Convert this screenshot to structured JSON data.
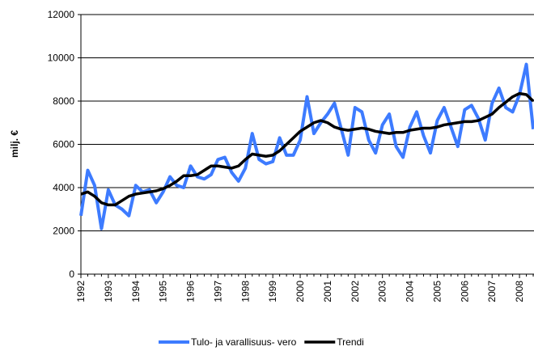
{
  "chart_data": {
    "type": "line",
    "y_label": "milj. €",
    "categories": [
      "1992",
      null,
      null,
      null,
      "1993",
      null,
      null,
      null,
      "1994",
      null,
      null,
      null,
      "1995",
      null,
      null,
      null,
      "1996",
      null,
      null,
      null,
      "1997",
      null,
      null,
      null,
      "1998",
      null,
      null,
      null,
      "1999",
      null,
      null,
      null,
      "2000",
      null,
      null,
      null,
      "2001",
      null,
      null,
      null,
      "2002",
      null,
      null,
      null,
      "2003",
      null,
      null,
      null,
      "2004",
      null,
      null,
      null,
      "2005",
      null,
      null,
      null,
      "2006",
      null,
      null,
      null,
      "2007",
      null,
      null,
      null,
      "2008",
      null,
      null
    ],
    "series": [
      {
        "name": "Tulo- ja varallisuus- vero",
        "color": "#3d7bff",
        "width": 4,
        "values": [
          2700,
          4800,
          4100,
          2100,
          3900,
          3200,
          3000,
          2700,
          4100,
          3800,
          3900,
          3300,
          3800,
          4500,
          4100,
          4000,
          5000,
          4500,
          4400,
          4600,
          5300,
          5400,
          4700,
          4300,
          4900,
          6500,
          5300,
          5100,
          5200,
          6300,
          5500,
          5500,
          6200,
          8200,
          6500,
          7000,
          7400,
          7900,
          6700,
          5500,
          7700,
          7500,
          6200,
          5600,
          6900,
          7400,
          5900,
          5400,
          6800,
          7500,
          6400,
          5600,
          7100,
          7700,
          6800,
          5900,
          7600,
          7800,
          7200,
          6200,
          7900,
          8600,
          7700,
          7500,
          8300,
          9700,
          6700
        ]
      },
      {
        "name": "Trendi",
        "color": "#000000",
        "width": 3.5,
        "values": [
          3700,
          3800,
          3600,
          3300,
          3200,
          3200,
          3400,
          3600,
          3700,
          3750,
          3800,
          3850,
          3950,
          4100,
          4300,
          4550,
          4550,
          4600,
          4800,
          5000,
          5000,
          4950,
          4900,
          5000,
          5300,
          5550,
          5500,
          5450,
          5500,
          5700,
          6000,
          6300,
          6600,
          6800,
          7000,
          7100,
          7000,
          6800,
          6700,
          6650,
          6700,
          6750,
          6700,
          6600,
          6550,
          6500,
          6550,
          6550,
          6650,
          6700,
          6750,
          6750,
          6800,
          6900,
          6950,
          7000,
          7050,
          7050,
          7100,
          7250,
          7400,
          7700,
          7950,
          8200,
          8350,
          8300,
          8000
        ]
      }
    ],
    "ylim": [
      0,
      12000
    ],
    "yticks": [
      0,
      2000,
      4000,
      6000,
      8000,
      10000,
      12000
    ],
    "grid": true
  }
}
